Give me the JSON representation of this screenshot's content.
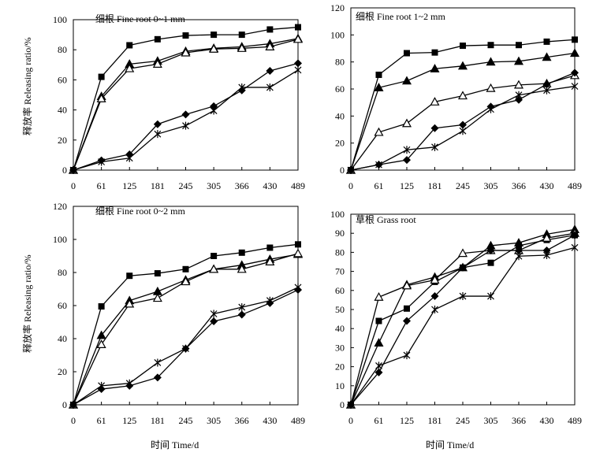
{
  "figure": {
    "ylabel": "释放率 Releasing ratio/%",
    "xlabel": "时间  Time/d"
  },
  "chart_data": [
    {
      "type": "line",
      "title": "细根  Fine root 0~1 mm",
      "xlabel": "时间  Time/d",
      "ylabel": "释放率 Releasing ratio/%",
      "categories": [
        "0",
        "61",
        "125",
        "181",
        "245",
        "305",
        "366",
        "430",
        "489"
      ],
      "ylim": [
        0,
        100
      ],
      "yticks": [
        0,
        20,
        40,
        60,
        80,
        100
      ],
      "series": [
        {
          "name": "square",
          "marker": "square",
          "values": [
            0,
            62,
            83,
            87,
            89.5,
            90,
            90,
            93.5,
            95
          ]
        },
        {
          "name": "triangle-filled",
          "marker": "triangle-filled",
          "values": [
            0,
            49,
            70.5,
            72.5,
            79,
            81,
            82,
            84,
            87.5
          ]
        },
        {
          "name": "triangle-open",
          "marker": "triangle-open",
          "values": [
            0,
            47.5,
            67.5,
            70.5,
            78,
            80.5,
            81,
            82,
            87
          ]
        },
        {
          "name": "diamond",
          "marker": "diamond",
          "values": [
            0,
            6.5,
            10.5,
            30.5,
            37,
            42.5,
            53,
            66,
            71
          ]
        },
        {
          "name": "asterisk",
          "marker": "asterisk",
          "values": [
            0,
            5.5,
            8,
            24,
            29.5,
            39.5,
            55,
            55,
            66.5
          ]
        }
      ]
    },
    {
      "type": "line",
      "title": "细根  Fine root 1~2 mm",
      "xlabel": "时间  Time/d",
      "ylabel": "释放率 Releasing ratio/%",
      "categories": [
        "0",
        "61",
        "125",
        "181",
        "245",
        "305",
        "366",
        "430",
        "489"
      ],
      "ylim": [
        0,
        120
      ],
      "yticks": [
        0,
        20,
        40,
        60,
        80,
        100,
        120
      ],
      "series": [
        {
          "name": "square",
          "marker": "square",
          "values": [
            0,
            70.5,
            86.5,
            87,
            92,
            92.5,
            92.5,
            95,
            96.5
          ]
        },
        {
          "name": "triangle-filled",
          "marker": "triangle-filled",
          "values": [
            0,
            61,
            66,
            75,
            77,
            80,
            80.5,
            83.5,
            86.5
          ]
        },
        {
          "name": "triangle-open",
          "marker": "triangle-open",
          "values": [
            0,
            28,
            34.5,
            50.5,
            55,
            60.5,
            63,
            64,
            70
          ]
        },
        {
          "name": "diamond",
          "marker": "diamond",
          "values": [
            0,
            4,
            7.5,
            31,
            33.5,
            47,
            52,
            63.5,
            72
          ]
        },
        {
          "name": "asterisk",
          "marker": "asterisk",
          "values": [
            0,
            4,
            15,
            17,
            29,
            45,
            55.5,
            59,
            62
          ]
        }
      ]
    },
    {
      "type": "line",
      "title": "细根  Fine root 0~2 mm",
      "xlabel": "时间  Time/d",
      "ylabel": "释放率 Releasing ratio/%",
      "categories": [
        "0",
        "61",
        "125",
        "181",
        "245",
        "305",
        "366",
        "430",
        "489"
      ],
      "ylim": [
        0,
        120
      ],
      "yticks": [
        0,
        20,
        40,
        60,
        80,
        100,
        120
      ],
      "series": [
        {
          "name": "square",
          "marker": "square",
          "values": [
            0,
            59.5,
            78,
            79.5,
            82,
            90,
            92,
            95,
            97
          ]
        },
        {
          "name": "triangle-filled",
          "marker": "triangle-filled",
          "values": [
            0,
            42,
            63,
            68.5,
            75.5,
            82,
            84.5,
            88,
            91
          ]
        },
        {
          "name": "triangle-open",
          "marker": "triangle-open",
          "values": [
            0,
            36.5,
            61,
            64.5,
            74.5,
            82,
            82,
            86.5,
            91.5
          ]
        },
        {
          "name": "diamond",
          "marker": "diamond",
          "values": [
            0,
            9.5,
            11.5,
            16.5,
            34,
            50.5,
            54.5,
            61.5,
            69.5
          ]
        },
        {
          "name": "asterisk",
          "marker": "asterisk",
          "values": [
            0,
            11.5,
            13,
            25.5,
            34,
            55,
            59,
            63,
            71
          ]
        }
      ]
    },
    {
      "type": "line",
      "title": "草根  Grass root",
      "xlabel": "时间  Time/d",
      "ylabel": "释放率 Releasing ratio/%",
      "categories": [
        "0",
        "61",
        "125",
        "181",
        "245",
        "305",
        "366",
        "430",
        "489"
      ],
      "ylim": [
        0,
        100
      ],
      "yticks": [
        0,
        10,
        20,
        30,
        40,
        50,
        60,
        70,
        80,
        90,
        100
      ],
      "series": [
        {
          "name": "square",
          "marker": "square",
          "values": [
            0,
            44,
            50.5,
            64.5,
            72,
            74.5,
            83.5,
            86.5,
            89
          ]
        },
        {
          "name": "triangle-filled",
          "marker": "triangle-filled",
          "values": [
            0,
            32.5,
            63,
            67,
            72,
            83.5,
            85,
            89.5,
            92
          ]
        },
        {
          "name": "triangle-open",
          "marker": "triangle-open",
          "values": [
            0,
            56.5,
            62.5,
            65.5,
            79.5,
            81,
            81,
            87.5,
            90
          ]
        },
        {
          "name": "diamond",
          "marker": "diamond",
          "values": [
            0,
            17,
            44,
            57,
            72,
            81,
            81,
            81,
            89
          ]
        },
        {
          "name": "asterisk",
          "marker": "asterisk",
          "values": [
            0,
            20.5,
            26,
            50,
            57,
            57,
            78,
            78.5,
            82.5
          ]
        }
      ]
    }
  ]
}
